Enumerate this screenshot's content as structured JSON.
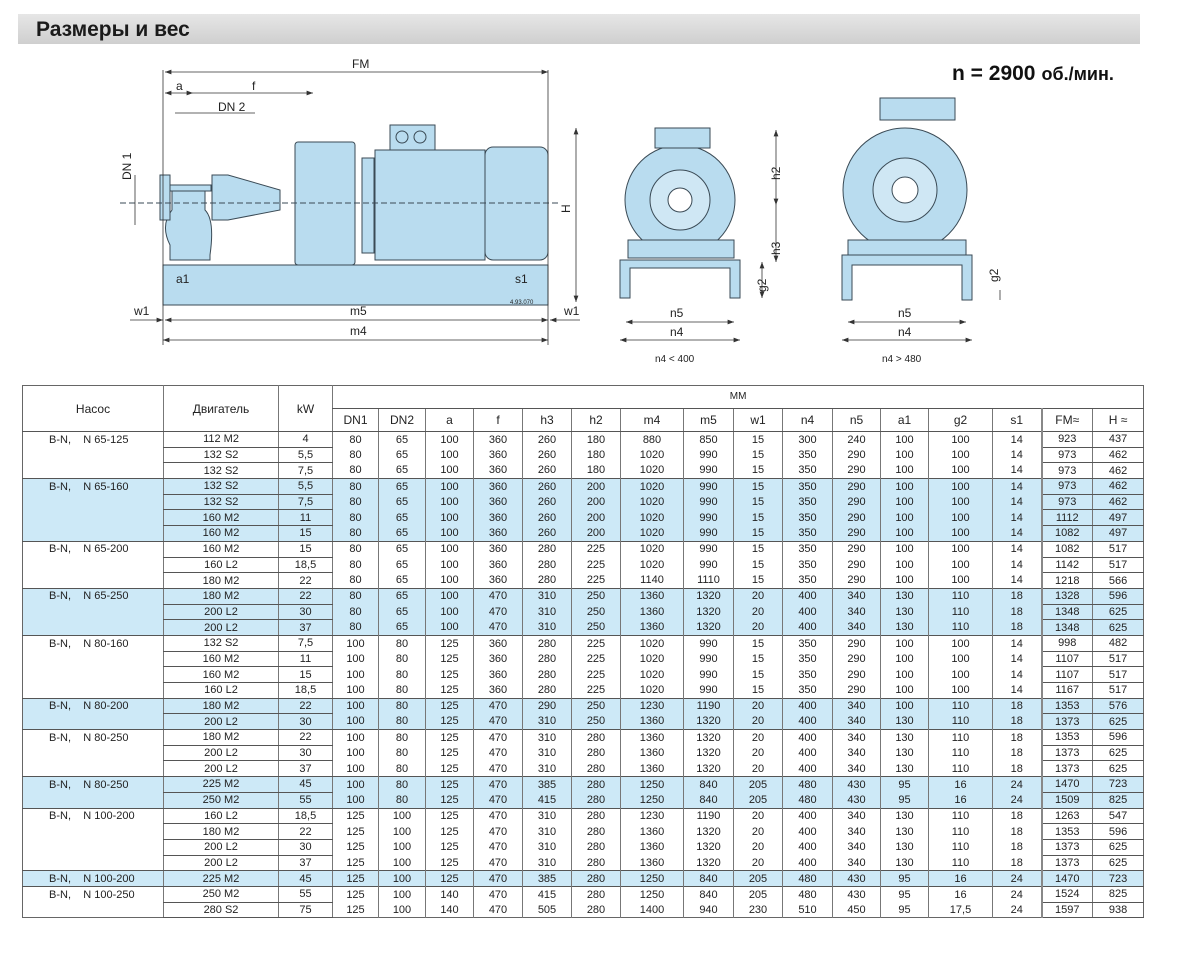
{
  "title": "Размеры и вес",
  "speed": {
    "label": "n = 2900",
    "unit": "об./мин."
  },
  "drawing": {
    "labels": {
      "FM": "FM",
      "a": "a",
      "f": "f",
      "DN2": "DN 2",
      "DN1": "DN 1",
      "H": "H",
      "a1": "a1",
      "s1": "s1",
      "w1": "w1",
      "m5": "m5",
      "m4": "m4",
      "code": "4.93.070",
      "h2": "h2",
      "h3": "h3",
      "g2": "g2",
      "n5": "n5",
      "n4": "n4"
    },
    "caption_small": "n4 < 400",
    "caption_large": "n4 > 480",
    "fill_color": "#b9dcef",
    "line_color": "#3a4a55"
  },
  "table": {
    "headers": {
      "pump": "Насос",
      "motor": "Двигатель",
      "kw": "kW",
      "mm": "ММ"
    },
    "columns": [
      "DN1",
      "DN2",
      "a",
      "f",
      "h3",
      "h2",
      "m4",
      "m5",
      "w1",
      "n4",
      "n5",
      "a1",
      "g2",
      "s1",
      "FM≈",
      "H ≈"
    ],
    "row_highlight_color": "#cde9f7",
    "groups": [
      {
        "pump": "B-N,    N 65-125",
        "rows": [
          [
            "112 M2",
            "4",
            "80",
            "65",
            "100",
            "360",
            "260",
            "180",
            "880",
            "850",
            "15",
            "300",
            "240",
            "100",
            "100",
            "14",
            "923",
            "437"
          ],
          [
            "132 S2",
            "5,5",
            "80",
            "65",
            "100",
            "360",
            "260",
            "180",
            "1020",
            "990",
            "15",
            "350",
            "290",
            "100",
            "100",
            "14",
            "973",
            "462"
          ],
          [
            "132 S2",
            "7,5",
            "80",
            "65",
            "100",
            "360",
            "260",
            "180",
            "1020",
            "990",
            "15",
            "350",
            "290",
            "100",
            "100",
            "14",
            "973",
            "462"
          ]
        ]
      },
      {
        "pump": "B-N,    N 65-160",
        "rows": [
          [
            "132 S2",
            "5,5",
            "80",
            "65",
            "100",
            "360",
            "260",
            "200",
            "1020",
            "990",
            "15",
            "350",
            "290",
            "100",
            "100",
            "14",
            "973",
            "462"
          ],
          [
            "132 S2",
            "7,5",
            "80",
            "65",
            "100",
            "360",
            "260",
            "200",
            "1020",
            "990",
            "15",
            "350",
            "290",
            "100",
            "100",
            "14",
            "973",
            "462"
          ],
          [
            "160 M2",
            "11",
            "80",
            "65",
            "100",
            "360",
            "260",
            "200",
            "1020",
            "990",
            "15",
            "350",
            "290",
            "100",
            "100",
            "14",
            "1112",
            "497"
          ],
          [
            "160 M2",
            "15",
            "80",
            "65",
            "100",
            "360",
            "260",
            "200",
            "1020",
            "990",
            "15",
            "350",
            "290",
            "100",
            "100",
            "14",
            "1082",
            "497"
          ]
        ]
      },
      {
        "pump": "B-N,    N 65-200",
        "rows": [
          [
            "160 M2",
            "15",
            "80",
            "65",
            "100",
            "360",
            "280",
            "225",
            "1020",
            "990",
            "15",
            "350",
            "290",
            "100",
            "100",
            "14",
            "1082",
            "517"
          ],
          [
            "160 L2",
            "18,5",
            "80",
            "65",
            "100",
            "360",
            "280",
            "225",
            "1020",
            "990",
            "15",
            "350",
            "290",
            "100",
            "100",
            "14",
            "1142",
            "517"
          ],
          [
            "180 M2",
            "22",
            "80",
            "65",
            "100",
            "360",
            "280",
            "225",
            "1140",
            "1110",
            "15",
            "350",
            "290",
            "100",
            "100",
            "14",
            "1218",
            "566"
          ]
        ]
      },
      {
        "pump": "B-N,    N 65-250",
        "rows": [
          [
            "180 M2",
            "22",
            "80",
            "65",
            "100",
            "470",
            "310",
            "250",
            "1360",
            "1320",
            "20",
            "400",
            "340",
            "130",
            "110",
            "18",
            "1328",
            "596"
          ],
          [
            "200 L2",
            "30",
            "80",
            "65",
            "100",
            "470",
            "310",
            "250",
            "1360",
            "1320",
            "20",
            "400",
            "340",
            "130",
            "110",
            "18",
            "1348",
            "625"
          ],
          [
            "200 L2",
            "37",
            "80",
            "65",
            "100",
            "470",
            "310",
            "250",
            "1360",
            "1320",
            "20",
            "400",
            "340",
            "130",
            "110",
            "18",
            "1348",
            "625"
          ]
        ]
      },
      {
        "pump": "B-N,    N 80-160",
        "rows": [
          [
            "132 S2",
            "7,5",
            "100",
            "80",
            "125",
            "360",
            "280",
            "225",
            "1020",
            "990",
            "15",
            "350",
            "290",
            "100",
            "100",
            "14",
            "998",
            "482"
          ],
          [
            "160 M2",
            "11",
            "100",
            "80",
            "125",
            "360",
            "280",
            "225",
            "1020",
            "990",
            "15",
            "350",
            "290",
            "100",
            "100",
            "14",
            "1107",
            "517"
          ],
          [
            "160 M2",
            "15",
            "100",
            "80",
            "125",
            "360",
            "280",
            "225",
            "1020",
            "990",
            "15",
            "350",
            "290",
            "100",
            "100",
            "14",
            "1107",
            "517"
          ],
          [
            "160 L2",
            "18,5",
            "100",
            "80",
            "125",
            "360",
            "280",
            "225",
            "1020",
            "990",
            "15",
            "350",
            "290",
            "100",
            "100",
            "14",
            "1167",
            "517"
          ]
        ]
      },
      {
        "pump": "B-N,    N 80-200",
        "rows": [
          [
            "180 M2",
            "22",
            "100",
            "80",
            "125",
            "470",
            "290",
            "250",
            "1230",
            "1190",
            "20",
            "400",
            "340",
            "100",
            "110",
            "18",
            "1353",
            "576"
          ],
          [
            "200 L2",
            "30",
            "100",
            "80",
            "125",
            "470",
            "310",
            "250",
            "1360",
            "1320",
            "20",
            "400",
            "340",
            "130",
            "110",
            "18",
            "1373",
            "625"
          ]
        ]
      },
      {
        "pump": "B-N,    N 80-250",
        "rows": [
          [
            "180 M2",
            "22",
            "100",
            "80",
            "125",
            "470",
            "310",
            "280",
            "1360",
            "1320",
            "20",
            "400",
            "340",
            "130",
            "110",
            "18",
            "1353",
            "596"
          ],
          [
            "200 L2",
            "30",
            "100",
            "80",
            "125",
            "470",
            "310",
            "280",
            "1360",
            "1320",
            "20",
            "400",
            "340",
            "130",
            "110",
            "18",
            "1373",
            "625"
          ],
          [
            "200 L2",
            "37",
            "100",
            "80",
            "125",
            "470",
            "310",
            "280",
            "1360",
            "1320",
            "20",
            "400",
            "340",
            "130",
            "110",
            "18",
            "1373",
            "625"
          ]
        ]
      },
      {
        "pump": "B-N,    N 80-250",
        "rows": [
          [
            "225 M2",
            "45",
            "100",
            "80",
            "125",
            "470",
            "385",
            "280",
            "1250",
            "840",
            "205",
            "480",
            "430",
            "95",
            "16",
            "24",
            "1470",
            "723"
          ],
          [
            "250 M2",
            "55",
            "100",
            "80",
            "125",
            "470",
            "415",
            "280",
            "1250",
            "840",
            "205",
            "480",
            "430",
            "95",
            "16",
            "24",
            "1509",
            "825"
          ]
        ]
      },
      {
        "pump": "B-N,    N 100-200",
        "rows": [
          [
            "160 L2",
            "18,5",
            "125",
            "100",
            "125",
            "470",
            "310",
            "280",
            "1230",
            "1190",
            "20",
            "400",
            "340",
            "130",
            "110",
            "18",
            "1263",
            "547"
          ],
          [
            "180 M2",
            "22",
            "125",
            "100",
            "125",
            "470",
            "310",
            "280",
            "1360",
            "1320",
            "20",
            "400",
            "340",
            "130",
            "110",
            "18",
            "1353",
            "596"
          ],
          [
            "200 L2",
            "30",
            "125",
            "100",
            "125",
            "470",
            "310",
            "280",
            "1360",
            "1320",
            "20",
            "400",
            "340",
            "130",
            "110",
            "18",
            "1373",
            "625"
          ],
          [
            "200 L2",
            "37",
            "125",
            "100",
            "125",
            "470",
            "310",
            "280",
            "1360",
            "1320",
            "20",
            "400",
            "340",
            "130",
            "110",
            "18",
            "1373",
            "625"
          ]
        ]
      },
      {
        "pump": "B-N,    N 100-200",
        "rows": [
          [
            "225 M2",
            "45",
            "125",
            "100",
            "125",
            "470",
            "385",
            "280",
            "1250",
            "840",
            "205",
            "480",
            "430",
            "95",
            "16",
            "24",
            "1470",
            "723"
          ]
        ]
      },
      {
        "pump": "B-N,    N 100-250",
        "rows": [
          [
            "250 M2",
            "55",
            "125",
            "100",
            "140",
            "470",
            "415",
            "280",
            "1250",
            "840",
            "205",
            "480",
            "430",
            "95",
            "16",
            "24",
            "1524",
            "825"
          ],
          [
            "280 S2",
            "75",
            "125",
            "100",
            "140",
            "470",
            "505",
            "280",
            "1400",
            "940",
            "230",
            "510",
            "450",
            "95",
            "17,5",
            "24",
            "1597",
            "938"
          ]
        ]
      }
    ]
  }
}
